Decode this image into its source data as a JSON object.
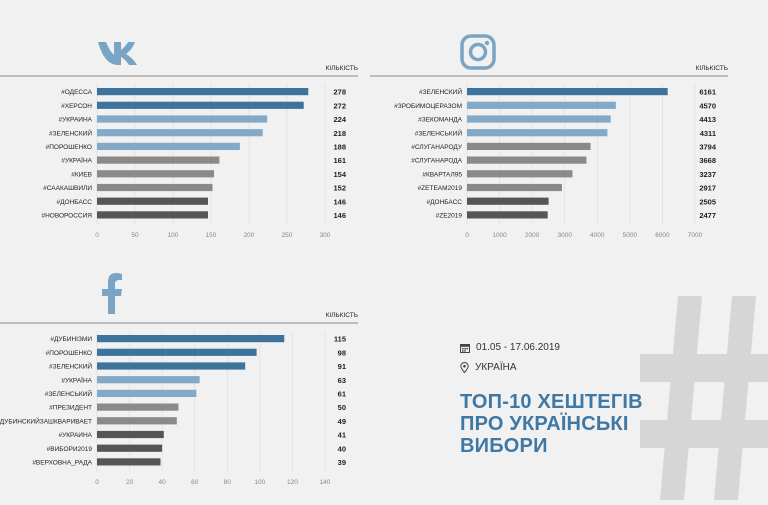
{
  "colors": {
    "bar_dark_blue": "#3e739c",
    "bar_light_blue": "#82aac8",
    "bar_grey": "#8a8a8a",
    "bar_dark_grey": "#555555",
    "title_blue": "#3f78a4",
    "logo_blue": "#7aa4c4"
  },
  "icons": {
    "vk": "vk-logo-icon",
    "instagram": "instagram-logo-icon",
    "facebook": "facebook-logo-icon",
    "calendar": "calendar-icon",
    "location": "location-pin-icon",
    "hash": "hashtag-background-icon"
  },
  "info": {
    "dates": "01.05 - 17.06.2019",
    "location": "УКРАЇНА",
    "title_line1": "ТОП-10 ХЕШТЕГІВ",
    "title_line2": "ПРО УКРАЇНСЬКІ",
    "title_line3": "ВИБОРИ"
  },
  "chart_data": [
    {
      "type": "bar",
      "orientation": "horizontal",
      "platform": "vk",
      "value_header": "КІЛЬКІСТЬ",
      "categories": [
        "#ОДЕССА",
        "#ХЕРСОН",
        "#УКРАИНА",
        "#ЗЕЛЕНСКИЙ",
        "#ПОРОШЕНКО",
        "#УКРАЇНА",
        "#КИЕВ",
        "#СААКАШВИЛИ",
        "#ДОНБАСС",
        "#НОВОРОССИЯ"
      ],
      "values": [
        278,
        272,
        224,
        218,
        188,
        161,
        154,
        152,
        146,
        146
      ],
      "bar_colors": [
        "#3e739c",
        "#3e739c",
        "#82aac8",
        "#82aac8",
        "#82aac8",
        "#8a8a8a",
        "#8a8a8a",
        "#8a8a8a",
        "#555555",
        "#555555"
      ],
      "xlim": [
        0,
        300
      ],
      "ticks": [
        0,
        50,
        100,
        150,
        200,
        250,
        300
      ]
    },
    {
      "type": "bar",
      "orientation": "horizontal",
      "platform": "instagram",
      "value_header": "КІЛЬКІСТЬ",
      "categories": [
        "#ЗЕЛЕНСКИЙ",
        "#ЗРОБИМОЦЕРАЗОМ",
        "#ЗЕКОМАНДА",
        "#ЗЕЛЕНСЬКИЙ",
        "#СЛУГАНАРОДУ",
        "#СЛУГАНАРОДА",
        "#КВАРТАЛ95",
        "#ZETEAM2019",
        "#ДОНБАСС",
        "#ZE2019"
      ],
      "values": [
        6161,
        4570,
        4413,
        4311,
        3794,
        3668,
        3237,
        2917,
        2505,
        2477
      ],
      "bar_colors": [
        "#3e739c",
        "#82aac8",
        "#82aac8",
        "#82aac8",
        "#8a8a8a",
        "#8a8a8a",
        "#8a8a8a",
        "#8a8a8a",
        "#555555",
        "#555555"
      ],
      "xlim": [
        0,
        7000
      ],
      "ticks": [
        0,
        1000,
        2000,
        3000,
        4000,
        5000,
        6000,
        7000
      ]
    },
    {
      "type": "bar",
      "orientation": "horizontal",
      "platform": "facebook",
      "value_header": "КІЛЬКІСТЬ",
      "categories": [
        "#ДУБИНІЗМИ",
        "#ПОРОШЕНКО",
        "#ЗЕЛЕНСКИЙ",
        "#УКРАЇНА",
        "#ЗЕЛЕНСЬКИЙ",
        "#ПРЕЗИДЕНТ",
        "#ДУБИНСКИЙЗАШКВАРИВАЕТ",
        "#УКРАИНА",
        "#ВИБОРИ2019",
        "#ВЕРХОВНА_РАДА"
      ],
      "values": [
        115,
        98,
        91,
        63,
        61,
        50,
        49,
        41,
        40,
        39
      ],
      "bar_colors": [
        "#3e739c",
        "#3e739c",
        "#3e739c",
        "#82aac8",
        "#82aac8",
        "#8a8a8a",
        "#8a8a8a",
        "#555555",
        "#555555",
        "#555555"
      ],
      "xlim": [
        0,
        140
      ],
      "ticks": [
        0,
        20,
        40,
        60,
        80,
        100,
        120,
        140
      ]
    }
  ]
}
